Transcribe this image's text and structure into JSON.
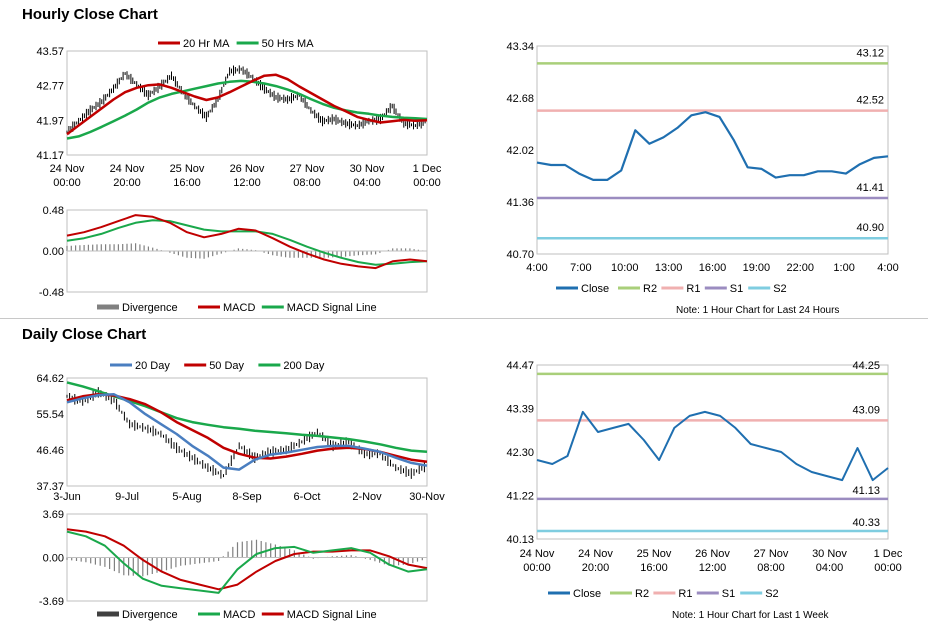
{
  "sections": {
    "hourly_title": "Hourly Close Chart",
    "daily_title": "Daily Close Chart"
  },
  "colors": {
    "ma_short": "#c00000",
    "ma_long": "#1aa84b",
    "ma20_day": "#4a7ec0",
    "ma50_day": "#c00000",
    "ma200_day": "#1aa84b",
    "price": "#000000",
    "divergence": "#808080",
    "close": "#1f6fb0",
    "r2": "#a9cf7a",
    "r1": "#f0b0b0",
    "s1": "#9b8cc0",
    "s2": "#7fcde0"
  },
  "chart_data": [
    {
      "id": "hourly_price",
      "type": "line",
      "legend": [
        "20 Hr MA",
        "50 Hrs MA"
      ],
      "y_ticks": [
        "43.57",
        "42.77",
        "41.97",
        "41.17"
      ],
      "ylim": [
        41.17,
        43.57
      ],
      "x_ticks": [
        [
          "24 Nov",
          "00:00"
        ],
        [
          "24 Nov",
          "20:00"
        ],
        [
          "25 Nov",
          "16:00"
        ],
        [
          "26 Nov",
          "12:00"
        ],
        [
          "27 Nov",
          "08:00"
        ],
        [
          "30 Nov",
          "04:00"
        ],
        [
          "1 Dec",
          "00:00"
        ]
      ],
      "series": [
        {
          "name": "20 Hr MA",
          "values": [
            41.65,
            41.85,
            42.05,
            42.25,
            42.45,
            42.62,
            42.72,
            42.78,
            42.8,
            42.72,
            42.62,
            42.52,
            42.44,
            42.5,
            42.62,
            42.75,
            42.88,
            43.0,
            43.02,
            42.92,
            42.75,
            42.6,
            42.45,
            42.3,
            42.18,
            42.05,
            41.98,
            41.92,
            41.95,
            41.98,
            41.96,
            41.97
          ]
        },
        {
          "name": "50 Hrs MA",
          "values": [
            41.55,
            41.6,
            41.7,
            41.82,
            41.95,
            42.08,
            42.22,
            42.38,
            42.5,
            42.58,
            42.64,
            42.7,
            42.76,
            42.82,
            42.86,
            42.88,
            42.86,
            42.82,
            42.76,
            42.68,
            42.58,
            42.46,
            42.35,
            42.26,
            42.2,
            42.15,
            42.12,
            42.08,
            42.05,
            42.03,
            42.02,
            42.0
          ]
        },
        {
          "name": "Price",
          "values": [
            41.7,
            41.95,
            42.2,
            42.4,
            42.7,
            43.05,
            42.8,
            42.55,
            42.75,
            43.0,
            42.6,
            42.3,
            42.05,
            42.45,
            43.1,
            43.15,
            42.95,
            42.7,
            42.5,
            42.45,
            42.55,
            42.2,
            41.95,
            42.0,
            41.9,
            41.85,
            41.95,
            42.0,
            42.3,
            41.9,
            41.85,
            41.95
          ]
        }
      ]
    },
    {
      "id": "hourly_macd",
      "type": "line",
      "legend": [
        "Divergence",
        "MACD",
        "MACD Signal Line"
      ],
      "y_ticks": [
        "0.48",
        "0.00",
        "-0.48"
      ],
      "ylim": [
        -0.48,
        0.48
      ],
      "series": [
        {
          "name": "MACD",
          "values": [
            0.18,
            0.22,
            0.28,
            0.35,
            0.42,
            0.4,
            0.33,
            0.22,
            0.16,
            0.2,
            0.26,
            0.24,
            0.15,
            0.05,
            -0.03,
            -0.1,
            -0.15,
            -0.18,
            -0.2,
            -0.12,
            -0.1,
            -0.12
          ]
        },
        {
          "name": "MACD Signal Line",
          "values": [
            0.12,
            0.15,
            0.2,
            0.27,
            0.33,
            0.36,
            0.35,
            0.3,
            0.25,
            0.23,
            0.23,
            0.23,
            0.2,
            0.13,
            0.05,
            -0.02,
            -0.08,
            -0.13,
            -0.16,
            -0.15,
            -0.13,
            -0.12
          ]
        },
        {
          "name": "Divergence",
          "values": [
            0.06,
            0.07,
            0.08,
            0.08,
            0.09,
            0.04,
            -0.02,
            -0.08,
            -0.09,
            -0.03,
            0.03,
            0.01,
            -0.05,
            -0.08,
            -0.08,
            -0.08,
            -0.07,
            -0.05,
            -0.04,
            0.03,
            0.03,
            0.0
          ]
        }
      ]
    },
    {
      "id": "hourly_close",
      "type": "line",
      "legend": [
        "Close",
        "R2",
        "R1",
        "S1",
        "S2"
      ],
      "y_ticks": [
        "43.34",
        "42.68",
        "42.02",
        "41.36",
        "40.70"
      ],
      "ylim": [
        40.7,
        43.34
      ],
      "x_ticks": [
        "4:00",
        "7:00",
        "10:00",
        "13:00",
        "16:00",
        "19:00",
        "22:00",
        "1:00",
        "4:00"
      ],
      "levels": {
        "R2": "43.12",
        "R1": "42.52",
        "S1": "41.41",
        "S2": "40.90"
      },
      "series": [
        {
          "name": "Close",
          "values": [
            41.86,
            41.83,
            41.83,
            41.72,
            41.64,
            41.64,
            41.76,
            42.27,
            42.1,
            42.18,
            42.3,
            42.46,
            42.5,
            42.44,
            42.15,
            41.8,
            41.78,
            41.67,
            41.7,
            41.7,
            41.75,
            41.75,
            41.72,
            41.84,
            41.92,
            41.94
          ]
        }
      ],
      "note": "Note: 1 Hour Chart for Last 24 Hours"
    },
    {
      "id": "daily_price",
      "type": "line",
      "legend": [
        "20 Day",
        "50 Day",
        "200 Day"
      ],
      "y_ticks": [
        "64.62",
        "55.54",
        "46.46",
        "37.37"
      ],
      "ylim": [
        37.37,
        64.62
      ],
      "x_ticks": [
        "3-Jun",
        "9-Jul",
        "5-Aug",
        "8-Sep",
        "6-Oct",
        "2-Nov",
        "30-Nov"
      ],
      "series": [
        {
          "name": "20 Day",
          "values": [
            58.5,
            59.5,
            60.3,
            60.5,
            58.5,
            55.5,
            53.0,
            50.5,
            47.5,
            45.0,
            42.0,
            41.5,
            44.0,
            45.3,
            45.8,
            46.5,
            47.2,
            47.5,
            47.5,
            46.8,
            46.0,
            44.5,
            43.2,
            42.5
          ]
        },
        {
          "name": "50 Day",
          "values": [
            59.0,
            60.0,
            60.5,
            60.2,
            59.3,
            58.0,
            56.0,
            53.5,
            51.5,
            49.5,
            47.0,
            45.5,
            44.5,
            44.3,
            44.8,
            45.5,
            46.3,
            46.8,
            47.0,
            46.7,
            46.0,
            45.0,
            44.0,
            43.5
          ]
        },
        {
          "name": "200 Day",
          "values": [
            63.5,
            62.5,
            61.3,
            60.0,
            58.8,
            57.5,
            56.0,
            54.5,
            53.5,
            52.8,
            52.2,
            51.8,
            51.3,
            51.0,
            50.7,
            50.3,
            50.0,
            49.6,
            49.2,
            48.6,
            47.9,
            47.0,
            46.3,
            46.0
          ]
        },
        {
          "name": "Price",
          "values": [
            60.0,
            58.5,
            61.0,
            59.0,
            53.0,
            52.0,
            50.5,
            47.0,
            44.5,
            42.0,
            40.0,
            47.5,
            44.5,
            46.0,
            46.5,
            48.5,
            51.0,
            47.5,
            48.5,
            45.5,
            45.5,
            42.0,
            40.5,
            42.5
          ]
        }
      ]
    },
    {
      "id": "daily_macd",
      "type": "line",
      "legend": [
        "Divergence",
        "MACD",
        "MACD Signal Line"
      ],
      "y_ticks": [
        "3.69",
        "0.00",
        "-3.69"
      ],
      "ylim": [
        -3.69,
        3.69
      ],
      "series": [
        {
          "name": "MACD",
          "values": [
            2.2,
            1.8,
            1.0,
            -0.5,
            -1.8,
            -2.4,
            -2.6,
            -2.8,
            -3.0,
            -1.0,
            0.3,
            0.8,
            0.9,
            0.4,
            0.6,
            0.8,
            0.4,
            -0.6,
            -1.2,
            -1.0
          ]
        },
        {
          "name": "MACD Signal Line",
          "values": [
            2.4,
            2.2,
            1.8,
            1.0,
            -0.2,
            -1.2,
            -1.9,
            -2.3,
            -2.7,
            -2.3,
            -1.2,
            -0.3,
            0.3,
            0.5,
            0.5,
            0.6,
            0.6,
            0.1,
            -0.6,
            -0.9
          ]
        },
        {
          "name": "Divergence",
          "values": [
            -0.2,
            -0.4,
            -0.8,
            -1.5,
            -1.6,
            -1.2,
            -0.7,
            -0.5,
            -0.3,
            1.3,
            1.5,
            1.1,
            0.6,
            -0.1,
            0.1,
            0.2,
            -0.2,
            -0.7,
            -0.6,
            -0.1
          ]
        }
      ]
    },
    {
      "id": "daily_close",
      "type": "line",
      "legend": [
        "Close",
        "R2",
        "R1",
        "S1",
        "S2"
      ],
      "y_ticks": [
        "44.47",
        "43.39",
        "42.30",
        "41.22",
        "40.13"
      ],
      "ylim": [
        40.13,
        44.47
      ],
      "x_ticks": [
        [
          "24 Nov",
          "00:00"
        ],
        [
          "24 Nov",
          "20:00"
        ],
        [
          "25 Nov",
          "16:00"
        ],
        [
          "26 Nov",
          "12:00"
        ],
        [
          "27 Nov",
          "08:00"
        ],
        [
          "30 Nov",
          "04:00"
        ],
        [
          "1 Dec",
          "00:00"
        ]
      ],
      "levels": {
        "R2": "44.25",
        "R1": "43.09",
        "S1": "41.13",
        "S2": "40.33"
      },
      "series": [
        {
          "name": "Close",
          "values": [
            42.1,
            42.0,
            42.2,
            43.3,
            42.8,
            42.9,
            43.0,
            42.6,
            42.1,
            42.9,
            43.2,
            43.3,
            43.2,
            42.9,
            42.5,
            42.4,
            42.3,
            42.0,
            41.8,
            41.7,
            41.6,
            42.4,
            41.6,
            41.9
          ]
        }
      ],
      "note": "Note: 1 Hour Chart for Last 1 Week"
    }
  ]
}
